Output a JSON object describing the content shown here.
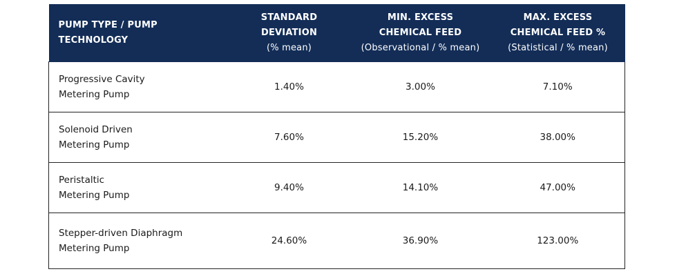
{
  "chart_data": {
    "type": "table",
    "columns": [
      {
        "lines": [
          "PUMP TYPE / PUMP",
          "TECHNOLOGY"
        ]
      },
      {
        "lines": [
          "STANDARD",
          "DEVIATION"
        ],
        "sub": "(% mean)"
      },
      {
        "lines": [
          "MIN. EXCESS",
          "CHEMICAL FEED"
        ],
        "sub": "(Observational / % mean)"
      },
      {
        "lines": [
          "MAX. EXCESS",
          "CHEMICAL FEED %"
        ],
        "sub": "(Statistical / % mean)"
      }
    ],
    "rows": [
      {
        "pump_type": [
          "Progressive Cavity",
          "Metering Pump"
        ],
        "std_dev": "1.40%",
        "min_excess": "3.00%",
        "max_excess": "7.10%"
      },
      {
        "pump_type": [
          "Solenoid Driven",
          "Metering Pump"
        ],
        "std_dev": "7.60%",
        "min_excess": "15.20%",
        "max_excess": "38.00%"
      },
      {
        "pump_type": [
          "Peristaltic",
          "Metering Pump"
        ],
        "std_dev": "9.40%",
        "min_excess": "14.10%",
        "max_excess": "47.00%"
      },
      {
        "pump_type": [
          "Stepper-driven Diaphragm",
          "Metering Pump"
        ],
        "std_dev": "24.60%",
        "min_excess": "36.90%",
        "max_excess": "123.00%"
      }
    ],
    "header_color": "#132d57",
    "header_text_color": "#ffffff",
    "border_color": "#222222"
  }
}
